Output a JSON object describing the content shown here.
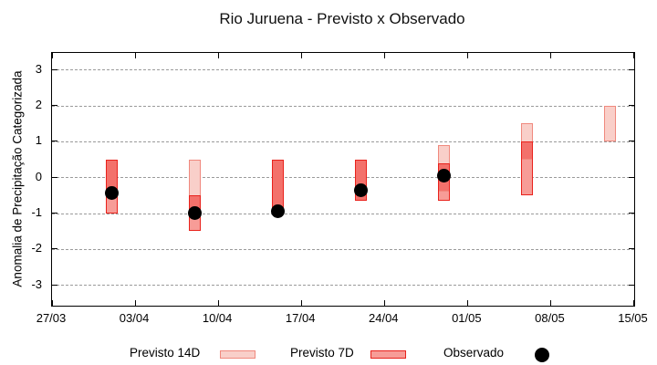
{
  "chart_data": {
    "type": "bar",
    "subtype": "range-candlestick-forecast",
    "title": "Rio Juruena - Previsto x Observado",
    "ylabel": "Anomalia de Precipitação Categorizada",
    "xlabel": "",
    "ylim": [
      -3.5,
      3.5
    ],
    "yticks": [
      3,
      2,
      1,
      0,
      -1,
      -2,
      -3
    ],
    "xtick_labels": [
      "27/03",
      "03/04",
      "10/04",
      "17/04",
      "24/04",
      "01/05",
      "08/05",
      "15/05"
    ],
    "xtick_days": [
      0,
      7,
      14,
      21,
      28,
      35,
      42,
      49
    ],
    "x_range_days": 49,
    "grid": "horizontal-dashed",
    "legend_position": "bottom",
    "colors": {
      "p14_fill": "#f9cfc9",
      "p14_border": "#f0897e",
      "p7_fill": "#f79c97",
      "p7_border": "#e9221c",
      "overlap_fill": "#f3716b",
      "observed": "#000000",
      "grid": "#9a9a9a",
      "axis": "#000000"
    },
    "series": [
      {
        "name": "Previsto 14D",
        "style": "box",
        "points": [
          {
            "date": "01/04",
            "day": 5,
            "high": 0.5,
            "low": -0.5
          },
          {
            "date": "08/04",
            "day": 12,
            "high": 0.5,
            "low": -1.0
          },
          {
            "date": "15/04",
            "day": 19,
            "high": 0.5,
            "low": -1.0
          },
          {
            "date": "22/04",
            "day": 26,
            "high": 0.5,
            "low": -0.65
          },
          {
            "date": "29/04",
            "day": 33,
            "high": 0.9,
            "low": -0.4
          },
          {
            "date": "06/05",
            "day": 40,
            "high": 1.5,
            "low": 0.5
          },
          {
            "date": "13/05",
            "day": 47,
            "high": 2.0,
            "low": 1.0
          }
        ]
      },
      {
        "name": "Previsto 7D",
        "style": "box",
        "points": [
          {
            "date": "01/04",
            "day": 5,
            "high": 0.5,
            "low": -1.0
          },
          {
            "date": "08/04",
            "day": 12,
            "high": -0.5,
            "low": -1.5
          },
          {
            "date": "15/04",
            "day": 19,
            "high": 0.5,
            "low": -1.0
          },
          {
            "date": "22/04",
            "day": 26,
            "high": 0.5,
            "low": -0.65
          },
          {
            "date": "29/04",
            "day": 33,
            "high": 0.4,
            "low": -0.65
          },
          {
            "date": "06/05",
            "day": 40,
            "high": 1.0,
            "low": -0.5
          }
        ]
      },
      {
        "name": "Observado",
        "style": "dot",
        "points": [
          {
            "date": "01/04",
            "day": 5,
            "value": -0.45
          },
          {
            "date": "08/04",
            "day": 12,
            "value": -1.0
          },
          {
            "date": "15/04",
            "day": 19,
            "value": -0.95
          },
          {
            "date": "22/04",
            "day": 26,
            "value": -0.35
          },
          {
            "date": "29/04",
            "day": 33,
            "value": 0.05
          }
        ]
      }
    ],
    "legend": [
      {
        "label": "Previsto 14D",
        "swatch": "box-light"
      },
      {
        "label": "Previsto 7D",
        "swatch": "box-red"
      },
      {
        "label": "Observado",
        "swatch": "dot-black"
      }
    ]
  }
}
